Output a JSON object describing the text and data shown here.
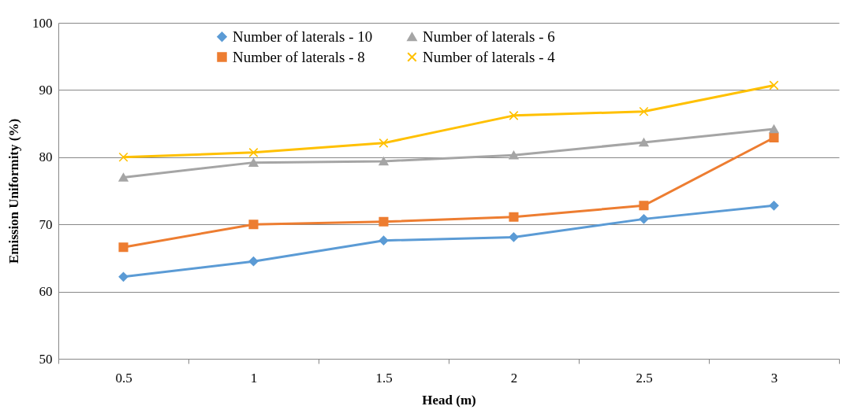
{
  "chart_data": {
    "type": "line",
    "xlabel": "Head (m)",
    "ylabel": "Emission Uniformity (%)",
    "categories": [
      "0.5",
      "1",
      "1.5",
      "2",
      "2.5",
      "3"
    ],
    "series": [
      {
        "name": "Number of laterals - 10",
        "color": "#5b9bd5",
        "marker": "diamond",
        "values": [
          62.2,
          64.5,
          67.6,
          68.1,
          70.8,
          72.8
        ]
      },
      {
        "name": "Number of laterals - 8",
        "color": "#ed7d31",
        "marker": "square",
        "values": [
          66.6,
          70.0,
          70.4,
          71.1,
          72.8,
          82.9
        ]
      },
      {
        "name": "Number of laterals - 6",
        "color": "#a5a5a5",
        "marker": "triangle",
        "values": [
          77.0,
          79.2,
          79.4,
          80.3,
          82.2,
          84.2
        ]
      },
      {
        "name": "Number of laterals - 4",
        "color": "#ffc000",
        "marker": "cross",
        "values": [
          80.0,
          80.7,
          82.1,
          86.2,
          86.8,
          90.7
        ]
      }
    ],
    "ylim": [
      50,
      100
    ],
    "yticks": [
      50,
      60,
      70,
      80,
      90,
      100
    ],
    "grid": "y",
    "legend": "top"
  }
}
